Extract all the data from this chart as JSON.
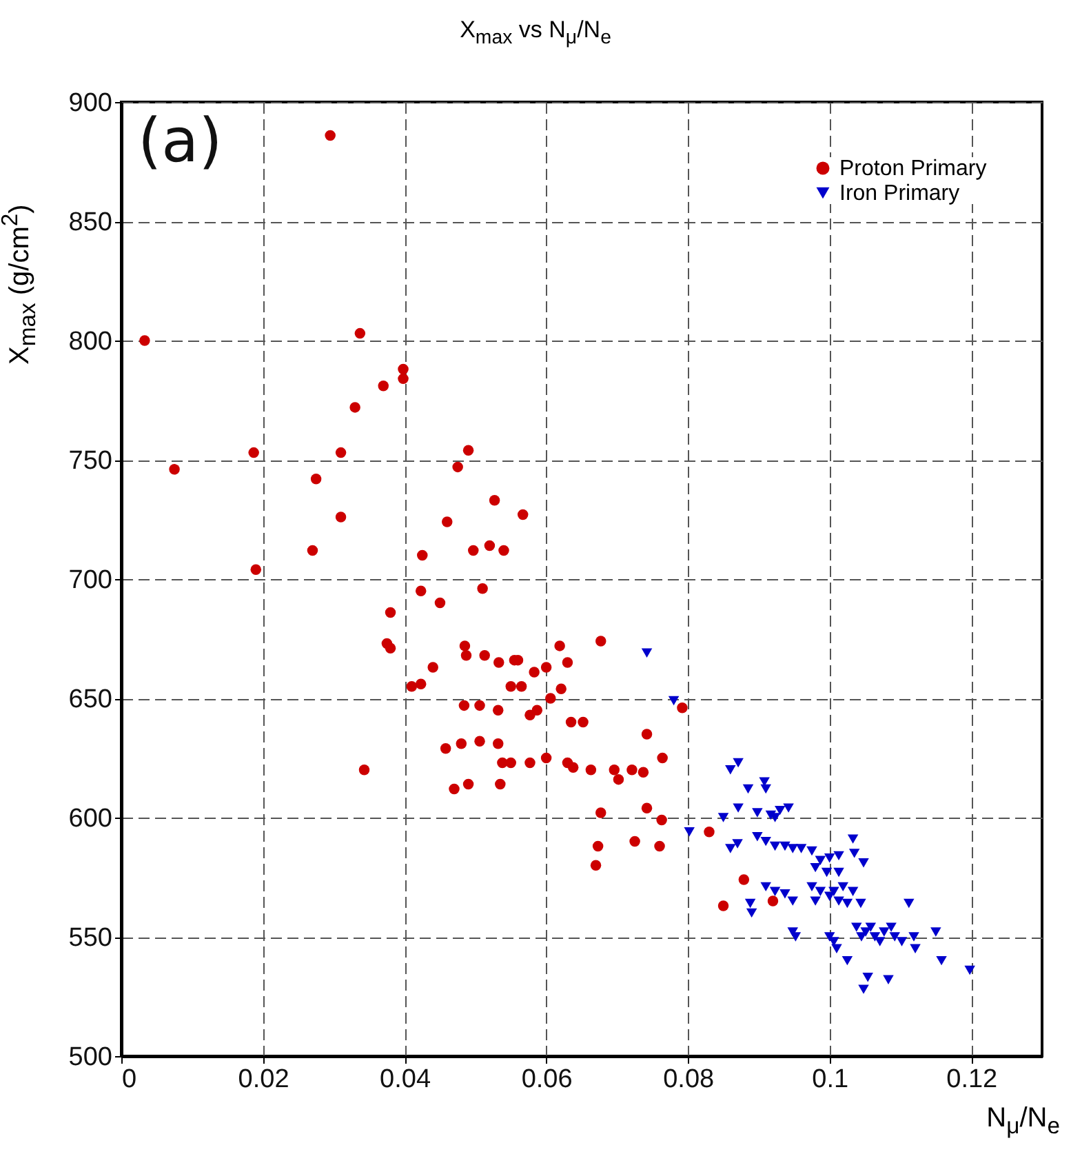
{
  "chart_data": {
    "type": "scatter",
    "title": "X$_{max}$ vs N$_{μ}$/N$_{e}$",
    "xlabel": "N$_{μ}$/N$_{e}$",
    "ylabel": "X$_{max}$ (g/cm$^{2}$)",
    "annotations": [
      "(a)"
    ],
    "xlim": [
      0,
      0.13
    ],
    "xticks": [
      0,
      0.02,
      0.04,
      0.06,
      0.08,
      0.1,
      0.12
    ],
    "ylim": [
      500,
      900
    ],
    "yticks": [
      500,
      550,
      600,
      650,
      700,
      750,
      800,
      850,
      900
    ],
    "grid": true,
    "legend": "top right",
    "series": [
      {
        "name": "Proton Primary",
        "color": "#cc0000",
        "marker": "circle",
        "x": [
          0.0033,
          0.0075,
          0.0187,
          0.019,
          0.0295,
          0.0337,
          0.033,
          0.037,
          0.0398,
          0.0398,
          0.031,
          0.0275,
          0.031,
          0.027,
          0.0475,
          0.049,
          0.0527,
          0.046,
          0.0567,
          0.0425,
          0.0497,
          0.052,
          0.054,
          0.0423,
          0.045,
          0.051,
          0.038,
          0.0375,
          0.038,
          0.044,
          0.041,
          0.0423,
          0.0485,
          0.0487,
          0.0513,
          0.0533,
          0.0555,
          0.055,
          0.0565,
          0.0484,
          0.0506,
          0.0532,
          0.0458,
          0.048,
          0.0506,
          0.0532,
          0.055,
          0.0343,
          0.047,
          0.049,
          0.0535,
          0.0677,
          0.0619,
          0.063,
          0.056,
          0.06,
          0.0583,
          0.0606,
          0.0621,
          0.0577,
          0.0587,
          0.0635,
          0.0652,
          0.0742,
          0.0764,
          0.0538,
          0.0577,
          0.06,
          0.063,
          0.0638,
          0.0663,
          0.0696,
          0.0702,
          0.0721,
          0.0737,
          0.0677,
          0.0742,
          0.0763,
          0.0673,
          0.067,
          0.0725,
          0.076,
          0.083,
          0.0879,
          0.085,
          0.092,
          0.0792
        ],
        "values": [
          800,
          746,
          753,
          704,
          886,
          803,
          772,
          781,
          788,
          784,
          753,
          742,
          726,
          712,
          747,
          754,
          733,
          724,
          727,
          710,
          712,
          714,
          712,
          695,
          690,
          696,
          686,
          673,
          671,
          663,
          655,
          656,
          672,
          668,
          668,
          665,
          666,
          655,
          655,
          647,
          647,
          645,
          629,
          631,
          632,
          631,
          623,
          620,
          612,
          614,
          614,
          674,
          672,
          665,
          666,
          663,
          661,
          650,
          654,
          643,
          645,
          640,
          640,
          635,
          625,
          623,
          623,
          625,
          623,
          621,
          620,
          620,
          616,
          620,
          619,
          602,
          604,
          599,
          588,
          580,
          590,
          588,
          594,
          574,
          563,
          565,
          646
        ]
      },
      {
        "name": "Iron Primary",
        "color": "#0000cc",
        "marker": "triangle",
        "x": [
          0.0742,
          0.078,
          0.0802,
          0.086,
          0.0871,
          0.0885,
          0.0908,
          0.091,
          0.0871,
          0.085,
          0.0898,
          0.0917,
          0.093,
          0.0942,
          0.0923,
          0.086,
          0.087,
          0.0898,
          0.091,
          0.0923,
          0.0937,
          0.0948,
          0.096,
          0.0975,
          0.0987,
          0.1,
          0.1013,
          0.1033,
          0.1035,
          0.1048,
          0.098,
          0.0996,
          0.1013,
          0.091,
          0.0923,
          0.0937,
          0.0948,
          0.0888,
          0.089,
          0.0975,
          0.0987,
          0.1,
          0.1013,
          0.1025,
          0.098,
          0.1006,
          0.1019,
          0.1033,
          0.1044,
          0.1112,
          0.0948,
          0.0952,
          0.1,
          0.1006,
          0.101,
          0.1025,
          0.1038,
          0.1045,
          0.1051,
          0.1058,
          0.1064,
          0.1071,
          0.1077,
          0.1087,
          0.1092,
          0.1102,
          0.1119,
          0.1121,
          0.115,
          0.1158,
          0.1198,
          0.1048,
          0.1054,
          0.1083
        ],
        "values": [
          669,
          649,
          594,
          620,
          623,
          612,
          615,
          612,
          604,
          600,
          602,
          601,
          603,
          604,
          600,
          587,
          589,
          592,
          590,
          588,
          588,
          587,
          587,
          586,
          582,
          583,
          584,
          591,
          585,
          581,
          579,
          577,
          577,
          571,
          569,
          568,
          565,
          564,
          560,
          571,
          569,
          567,
          565,
          564,
          565,
          569,
          571,
          569,
          564,
          564,
          552,
          550,
          550,
          548,
          545,
          540,
          554,
          550,
          552,
          554,
          550,
          548,
          552,
          554,
          550,
          548,
          550,
          545,
          552,
          540,
          536,
          528,
          533,
          532
        ]
      }
    ]
  }
}
